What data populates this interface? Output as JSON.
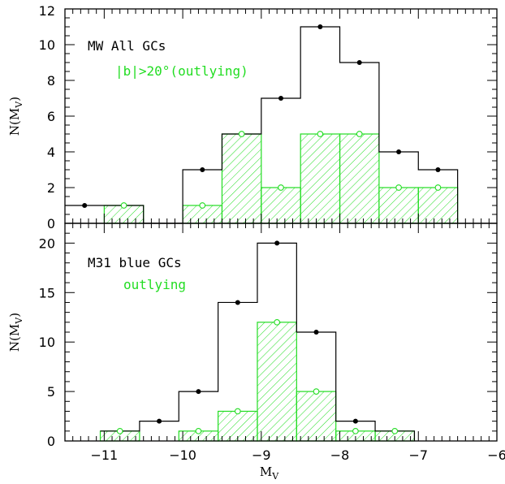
{
  "colors": {
    "all": "#000000",
    "outlying": "#22dd22"
  },
  "chart_data": [
    {
      "type": "histogram",
      "panel": "top",
      "xlim": [
        -11.5,
        -6
      ],
      "ylim": [
        0,
        12
      ],
      "bin_width": 0.5,
      "ylabel_main": "N(M",
      "ylabel_sub": "V",
      "ylabel_close": ")",
      "yticks": [
        "0",
        "2",
        "4",
        "6",
        "8",
        "10",
        "12"
      ],
      "yminor_step": 0.5,
      "annotations": [
        {
          "text": "MW All GCs",
          "color": "#000000"
        },
        {
          "text": "|b|>20°(outlying)",
          "color": "#22dd22"
        }
      ],
      "series": [
        {
          "name": "MW All GCs",
          "style": "black-line-filled-dots",
          "x": [
            -11.25,
            -10.75,
            -10.25,
            -9.75,
            -9.25,
            -8.75,
            -8.25,
            -7.75,
            -7.25,
            -6.75
          ],
          "values": [
            1,
            1,
            0,
            3,
            5,
            7,
            11,
            9,
            4,
            3
          ]
        },
        {
          "name": "|b|>20°(outlying)",
          "style": "green-hatched-open-circles",
          "x": [
            -10.75,
            -10.25,
            -9.75,
            -9.25,
            -8.75,
            -8.25,
            -7.75,
            -7.25,
            -6.75
          ],
          "values": [
            1,
            0,
            1,
            5,
            2,
            5,
            5,
            2,
            2
          ]
        }
      ]
    },
    {
      "type": "histogram",
      "panel": "bottom",
      "xlim": [
        -11.5,
        -6
      ],
      "ylim": [
        0,
        22
      ],
      "bin_width": 0.5,
      "ylabel_main": "N(M",
      "ylabel_sub": "V",
      "ylabel_close": ")",
      "xlabel_main": "M",
      "xlabel_sub": "V",
      "xticks": [
        "−11",
        "−10",
        "−9",
        "−8",
        "−7",
        "−6"
      ],
      "yticks": [
        "0",
        "5",
        "10",
        "15",
        "20"
      ],
      "yminor_step": 1,
      "annotations": [
        {
          "text": "M31 blue GCs",
          "color": "#000000"
        },
        {
          "text": "outlying",
          "color": "#22dd22"
        }
      ],
      "series": [
        {
          "name": "M31 blue GCs",
          "style": "black-line-filled-dots",
          "x": [
            -10.8,
            -10.3,
            -9.8,
            -9.3,
            -8.8,
            -8.3,
            -7.8,
            -7.3
          ],
          "values": [
            1,
            2,
            5,
            14,
            20,
            11,
            2,
            1
          ]
        },
        {
          "name": "outlying",
          "style": "green-hatched-open-circles",
          "x": [
            -10.8,
            -9.8,
            -9.3,
            -8.8,
            -8.3,
            -7.8,
            -7.3
          ],
          "values": [
            1,
            1,
            3,
            12,
            5,
            1,
            1
          ]
        }
      ]
    }
  ]
}
